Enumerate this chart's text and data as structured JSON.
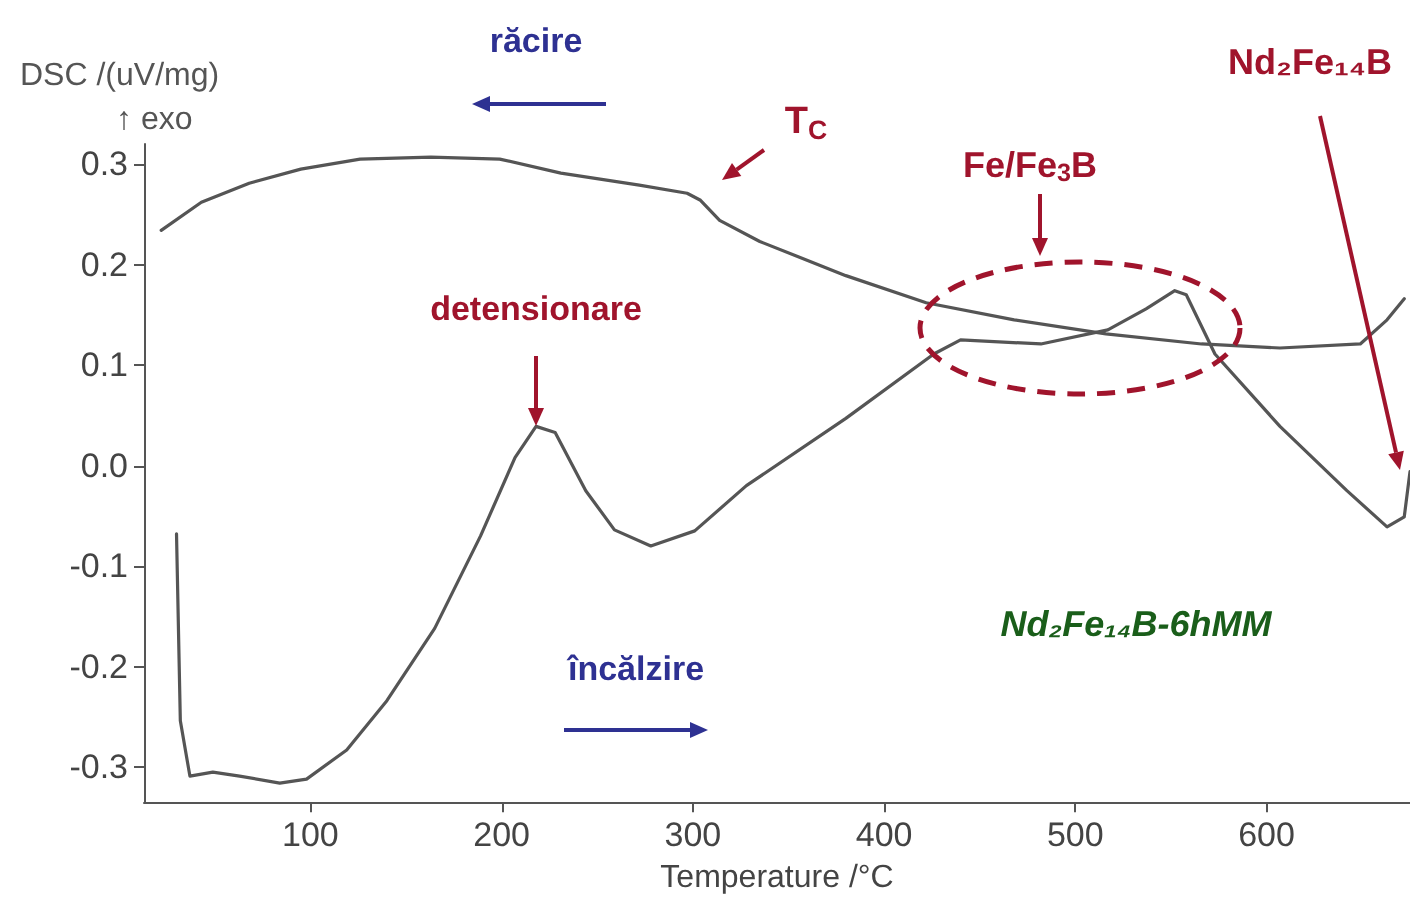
{
  "chart_data": {
    "type": "line",
    "xlabel": "Temperature /°C",
    "ylabel": "DSC /(uV/mg)\n↑ exo",
    "xlim": [
      13,
      675
    ],
    "ylim": [
      -0.335,
      0.32
    ],
    "xticks": [
      100,
      200,
      300,
      400,
      500,
      600
    ],
    "yticks": [
      -0.3,
      -0.2,
      -0.1,
      {
        "value": 0,
        "label": "0.0"
      },
      0.1,
      0.2,
      0.3
    ],
    "grid": false,
    "marker": "none",
    "line_style": "solid",
    "series": [
      {
        "color": "#555555",
        "x": [
          22,
          43,
          68,
          95,
          126,
          163,
          199,
          231,
          272,
          297,
          304,
          314,
          335,
          380,
          422,
          468,
          516,
          566,
          607,
          649,
          663,
          672
        ],
        "values": [
          0.234,
          0.262,
          0.281,
          0.295,
          0.305,
          0.307,
          0.305,
          0.291,
          0.279,
          0.271,
          0.264,
          0.244,
          0.223,
          0.189,
          0.162,
          0.145,
          0.131,
          0.121,
          0.117,
          0.121,
          0.145,
          0.166
        ]
      },
      {
        "color": "#555555",
        "x": [
          30,
          32,
          37,
          49,
          63,
          84,
          98,
          119,
          140,
          165,
          189,
          207,
          218,
          228,
          244,
          259,
          278,
          301,
          328,
          380,
          426,
          440,
          482,
          517,
          537,
          552,
          558,
          573,
          607,
          642,
          663,
          672,
          675
        ],
        "values": [
          -0.068,
          -0.254,
          -0.309,
          -0.305,
          -0.309,
          -0.316,
          -0.312,
          -0.283,
          -0.234,
          -0.162,
          -0.07,
          0.008,
          0.039,
          0.033,
          -0.025,
          -0.064,
          -0.08,
          -0.065,
          -0.02,
          0.047,
          0.111,
          0.125,
          0.121,
          0.135,
          0.156,
          0.174,
          0.17,
          0.111,
          0.039,
          -0.025,
          -0.061,
          -0.051,
          -0.006
        ]
      }
    ],
    "annotations": [
      "răcire",
      "încălzire",
      "detensionare",
      "T$_{C}$",
      "Fe/Fe$_{3}$B",
      "Nd₂Fe₁₄B",
      "Nd₂Fe₁₄B-6hMM"
    ]
  }
}
